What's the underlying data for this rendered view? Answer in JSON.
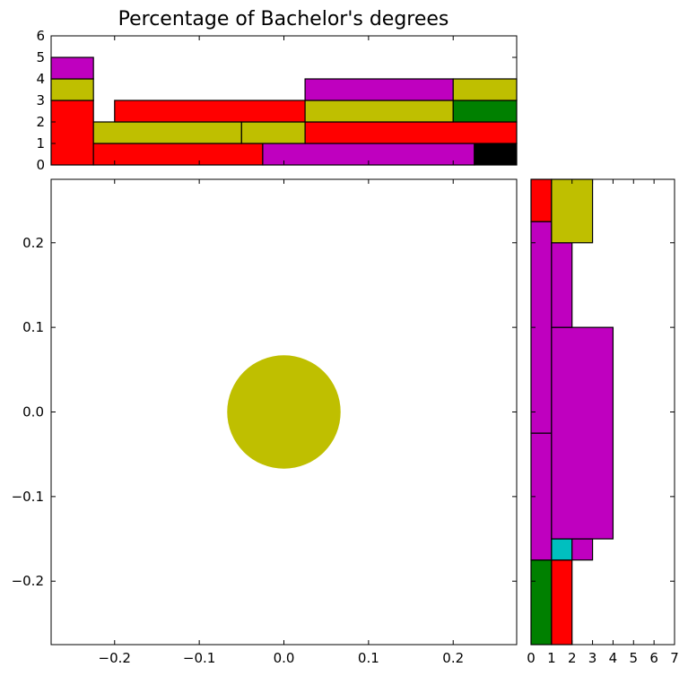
{
  "chart_data": {
    "type": "scatter",
    "title": "Percentage of Bachelor's degrees",
    "main": {
      "xlim": [
        -0.275,
        0.275
      ],
      "ylim": [
        -0.275,
        0.275
      ],
      "xticks": [
        -0.2,
        -0.1,
        0.0,
        0.1,
        0.2
      ],
      "xticklabels": [
        "−0.2",
        "−0.1",
        "0.0",
        "0.1",
        "0.2"
      ],
      "yticks": [
        -0.2,
        -0.1,
        0.0,
        0.1,
        0.2
      ],
      "yticklabels": [
        "−0.2",
        "−0.1",
        "0.0",
        "0.1",
        "0.2"
      ],
      "points": [
        {
          "x": 0.0,
          "y": 0.0,
          "r": 0.067,
          "color": "#bfbf00"
        }
      ]
    },
    "top_histogram": {
      "xlim": [
        -0.275,
        0.275
      ],
      "ylim": [
        0,
        6
      ],
      "yticks": [
        0,
        1,
        2,
        3,
        4,
        5,
        6
      ],
      "yticklabels": [
        "0",
        "1",
        "2",
        "3",
        "4",
        "5",
        "6"
      ],
      "bars": [
        {
          "x0": -0.275,
          "x1": -0.225,
          "y0": 0,
          "y1": 3,
          "color": "#ff0000"
        },
        {
          "x0": -0.275,
          "x1": -0.225,
          "y0": 3,
          "y1": 4,
          "color": "#bfbf00"
        },
        {
          "x0": -0.275,
          "x1": -0.225,
          "y0": 4,
          "y1": 5,
          "color": "#bf00bf"
        },
        {
          "x0": -0.225,
          "x1": -0.025,
          "y0": 0,
          "y1": 1,
          "color": "#ff0000"
        },
        {
          "x0": -0.025,
          "x1": 0.225,
          "y0": 0,
          "y1": 1,
          "color": "#bf00bf"
        },
        {
          "x0": 0.225,
          "x1": 0.275,
          "y0": 0,
          "y1": 1,
          "color": "#000000"
        },
        {
          "x0": -0.225,
          "x1": -0.05,
          "y0": 1,
          "y1": 2,
          "color": "#bfbf00"
        },
        {
          "x0": -0.05,
          "x1": 0.025,
          "y0": 1,
          "y1": 2,
          "color": "#bfbf00"
        },
        {
          "x0": 0.025,
          "x1": 0.275,
          "y0": 1,
          "y1": 2,
          "color": "#ff0000"
        },
        {
          "x0": -0.2,
          "x1": 0.025,
          "y0": 2,
          "y1": 3,
          "color": "#ff0000"
        },
        {
          "x0": 0.025,
          "x1": 0.2,
          "y0": 2,
          "y1": 3,
          "color": "#bfbf00"
        },
        {
          "x0": 0.2,
          "x1": 0.275,
          "y0": 2,
          "y1": 3,
          "color": "#008000"
        },
        {
          "x0": 0.025,
          "x1": 0.2,
          "y0": 3,
          "y1": 4,
          "color": "#bf00bf"
        },
        {
          "x0": 0.2,
          "x1": 0.275,
          "y0": 3,
          "y1": 4,
          "color": "#bfbf00"
        }
      ]
    },
    "right_histogram": {
      "xlim": [
        0,
        7
      ],
      "ylim": [
        -0.275,
        0.275
      ],
      "xticks": [
        0,
        1,
        2,
        3,
        4,
        5,
        6,
        7
      ],
      "xticklabels": [
        "0",
        "1",
        "2",
        "3",
        "4",
        "5",
        "6",
        "7"
      ],
      "bars": [
        {
          "y0": -0.275,
          "y1": -0.175,
          "x0": 0,
          "x1": 1,
          "color": "#008000"
        },
        {
          "y0": -0.275,
          "y1": -0.175,
          "x0": 1,
          "x1": 2,
          "color": "#ff0000"
        },
        {
          "y0": -0.175,
          "y1": -0.025,
          "x0": 0,
          "x1": 1,
          "color": "#bf00bf"
        },
        {
          "y0": -0.025,
          "y1": 0.225,
          "x0": 0,
          "x1": 1,
          "color": "#bf00bf"
        },
        {
          "y0": 0.225,
          "y1": 0.275,
          "x0": 0,
          "x1": 1,
          "color": "#ff0000"
        },
        {
          "y0": -0.175,
          "y1": -0.15,
          "x0": 1,
          "x1": 2,
          "color": "#00bfbf"
        },
        {
          "y0": -0.175,
          "y1": -0.15,
          "x0": 2,
          "x1": 3,
          "color": "#bf00bf"
        },
        {
          "y0": -0.15,
          "y1": 0.1,
          "x0": 1,
          "x1": 4,
          "color": "#bf00bf"
        },
        {
          "y0": 0.1,
          "y1": 0.2,
          "x0": 1,
          "x1": 2,
          "color": "#bf00bf"
        },
        {
          "y0": 0.2,
          "y1": 0.275,
          "x0": 1,
          "x1": 3,
          "color": "#bfbf00"
        }
      ]
    }
  }
}
